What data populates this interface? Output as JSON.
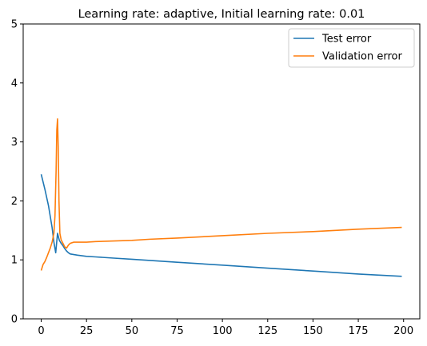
{
  "chart_data": {
    "type": "line",
    "title": "Learning rate: adaptive, Initial learning rate: 0.01",
    "xlabel": "",
    "ylabel": "",
    "xlim": [
      -9.95,
      208.95
    ],
    "ylim": [
      0,
      5
    ],
    "x_ticks": [
      0,
      25,
      50,
      75,
      100,
      125,
      150,
      175,
      200
    ],
    "y_ticks": [
      0,
      1,
      2,
      3,
      4,
      5
    ],
    "grid": false,
    "legend_position": "top-right",
    "series": [
      {
        "name": "Test error",
        "color": "#1f77b4",
        "x": [
          0,
          2,
          4,
          6,
          7,
          8,
          9,
          10,
          11,
          12,
          13,
          14,
          15,
          16,
          18,
          20,
          25,
          30,
          40,
          50,
          60,
          75,
          100,
          125,
          150,
          175,
          199
        ],
        "y": [
          2.45,
          2.2,
          1.92,
          1.55,
          1.3,
          1.12,
          1.45,
          1.33,
          1.28,
          1.24,
          1.19,
          1.15,
          1.12,
          1.1,
          1.09,
          1.08,
          1.06,
          1.05,
          1.03,
          1.01,
          0.99,
          0.96,
          0.91,
          0.86,
          0.81,
          0.76,
          0.72
        ]
      },
      {
        "name": "Validation error",
        "color": "#ff7f0e",
        "x": [
          0,
          1,
          2,
          3,
          4,
          5,
          6,
          7,
          7.6,
          8.2,
          8.6,
          9,
          9.4,
          9.8,
          10.3,
          11,
          12,
          13,
          14,
          15,
          16,
          18,
          20,
          25,
          30,
          40,
          50,
          60,
          75,
          100,
          125,
          150,
          175,
          199
        ],
        "y": [
          0.82,
          0.92,
          0.97,
          1.04,
          1.12,
          1.2,
          1.3,
          1.45,
          1.75,
          2.5,
          3.2,
          3.39,
          2.9,
          2.0,
          1.45,
          1.34,
          1.28,
          1.22,
          1.2,
          1.25,
          1.28,
          1.3,
          1.3,
          1.3,
          1.31,
          1.32,
          1.33,
          1.35,
          1.37,
          1.41,
          1.45,
          1.48,
          1.52,
          1.55
        ]
      }
    ]
  }
}
